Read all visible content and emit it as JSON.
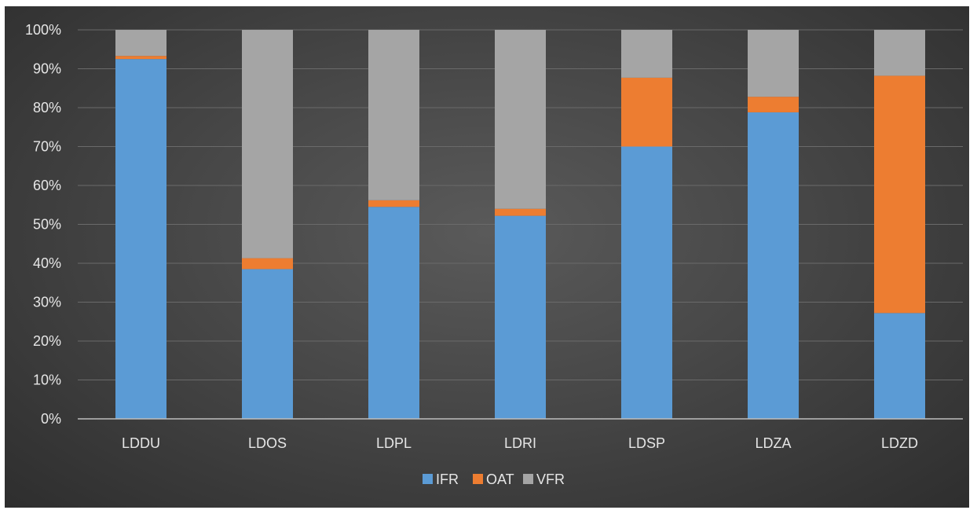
{
  "chart_data": {
    "type": "bar",
    "stacked": true,
    "percent_stacked": true,
    "categories": [
      "LDDU",
      "LDOS",
      "LDPL",
      "LDRI",
      "LDSP",
      "LDZA",
      "LDZD"
    ],
    "series": [
      {
        "name": "IFR",
        "color": "#5b9bd5",
        "values": [
          92.5,
          38.5,
          54.5,
          52.2,
          70.0,
          78.8,
          27.2
        ]
      },
      {
        "name": "OAT",
        "color": "#ed7d31",
        "values": [
          0.8,
          2.8,
          1.7,
          1.8,
          17.7,
          4.0,
          61.0
        ]
      },
      {
        "name": "VFR",
        "color": "#a5a5a5",
        "values": [
          6.7,
          58.7,
          43.8,
          46.0,
          12.3,
          17.2,
          11.8
        ]
      }
    ],
    "ylim": [
      0,
      100
    ],
    "yticks": [
      "0%",
      "10%",
      "20%",
      "30%",
      "40%",
      "50%",
      "60%",
      "70%",
      "80%",
      "90%",
      "100%"
    ],
    "grid": true,
    "legend_position": "bottom"
  }
}
